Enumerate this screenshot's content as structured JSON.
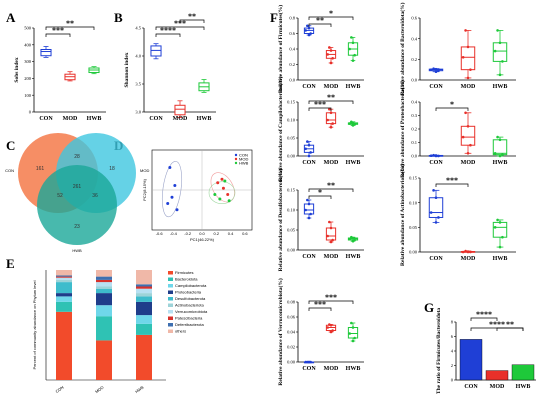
{
  "panel_letters": {
    "A": "A",
    "B": "B",
    "C": "C",
    "D": "D",
    "E": "E",
    "F": "F",
    "G": "G"
  },
  "groups": [
    "CON",
    "MOD",
    "HWB"
  ],
  "colors": {
    "CON": "#1f3fd6",
    "MOD": "#e8302a",
    "HWB": "#1ec93a"
  },
  "chart_data": [
    {
      "id": "A",
      "type": "box",
      "title": "",
      "ylabel": "Sobs index",
      "ylim": [
        0,
        500
      ],
      "yticks": [
        0,
        100,
        200,
        300,
        400,
        500
      ],
      "categories": [
        "CON",
        "MOD",
        "HWB"
      ],
      "boxes": [
        {
          "group": "CON",
          "min": 325,
          "q1": 335,
          "median": 360,
          "q3": 372,
          "max": 390
        },
        {
          "group": "MOD",
          "min": 185,
          "q1": 192,
          "median": 210,
          "q3": 225,
          "max": 240
        },
        {
          "group": "HWB",
          "min": 228,
          "q1": 235,
          "median": 250,
          "q3": 262,
          "max": 270
        }
      ],
      "significance": [
        {
          "from": "CON",
          "to": "MOD",
          "label": "***"
        },
        {
          "from": "CON",
          "to": "HWB",
          "label": "**"
        }
      ]
    },
    {
      "id": "B",
      "type": "box",
      "title": "",
      "ylabel": "Shannon index",
      "ylim": [
        3.0,
        4.5
      ],
      "yticks": [
        "3.0",
        "3.5",
        "4.0",
        "4.5"
      ],
      "categories": [
        "CON",
        "MOD",
        "HWB"
      ],
      "boxes": [
        {
          "group": "CON",
          "min": 3.95,
          "q1": 4.0,
          "median": 4.1,
          "q3": 4.18,
          "max": 4.22
        },
        {
          "group": "MOD",
          "min": 2.9,
          "q1": 2.95,
          "median": 3.05,
          "q3": 3.12,
          "max": 3.2
        },
        {
          "group": "HWB",
          "min": 3.35,
          "q1": 3.38,
          "median": 3.45,
          "q3": 3.52,
          "max": 3.58
        }
      ],
      "significance": [
        {
          "from": "CON",
          "to": "MOD",
          "label": "****"
        },
        {
          "from": "CON",
          "to": "HWB",
          "label": "***"
        },
        {
          "from": "MOD",
          "to": "HWB",
          "label": "**"
        }
      ]
    },
    {
      "id": "C",
      "type": "venn",
      "sets": [
        "CON",
        "MOD",
        "HWB"
      ],
      "values": {
        "CON_only": 161,
        "MOD_only": 18,
        "HWB_only": 23,
        "CON_MOD": 28,
        "CON_HWB": 52,
        "MOD_HWB": 36,
        "all": 261
      }
    },
    {
      "id": "D",
      "type": "scatter",
      "xlabel": "PC1(46.22%)",
      "ylabel": "PC2(8.15%)",
      "xticks": [
        "-0.6",
        "-0.4",
        "-0.2",
        "0.0",
        "0.2",
        "0.4",
        "0.6"
      ],
      "legend": [
        "CON",
        "MOD",
        "HWB"
      ],
      "points": [
        {
          "group": "CON",
          "x": -0.45,
          "y": 0.25
        },
        {
          "group": "CON",
          "x": -0.38,
          "y": 0.05
        },
        {
          "group": "CON",
          "x": -0.42,
          "y": -0.08
        },
        {
          "group": "CON",
          "x": -0.35,
          "y": -0.22
        },
        {
          "group": "CON",
          "x": -0.48,
          "y": -0.15
        },
        {
          "group": "MOD",
          "x": 0.22,
          "y": 0.08
        },
        {
          "group": "MOD",
          "x": 0.3,
          "y": 0.02
        },
        {
          "group": "MOD",
          "x": 0.36,
          "y": -0.05
        },
        {
          "group": "MOD",
          "x": 0.28,
          "y": 0.12
        },
        {
          "group": "HWB",
          "x": 0.18,
          "y": -0.05
        },
        {
          "group": "HWB",
          "x": 0.25,
          "y": -0.1
        },
        {
          "group": "HWB",
          "x": 0.38,
          "y": -0.12
        },
        {
          "group": "HWB",
          "x": 0.32,
          "y": 0.1
        }
      ]
    },
    {
      "id": "E",
      "type": "stacked_bar",
      "ylabel": "Percent of community abundance on Phylum level",
      "categories": [
        "CON",
        "MOD",
        "HWB"
      ],
      "series": [
        {
          "name": "Firmicutes",
          "color": "#f24b2b",
          "values": [
            0.62,
            0.36,
            0.41
          ]
        },
        {
          "name": "Bacteroidota",
          "color": "#2fc2b4",
          "values": [
            0.09,
            0.22,
            0.1
          ]
        },
        {
          "name": "Campilobacterota",
          "color": "#6fd7ea",
          "values": [
            0.05,
            0.1,
            0.08
          ]
        },
        {
          "name": "Proteobacteria",
          "color": "#1f3d8a",
          "values": [
            0.03,
            0.11,
            0.12
          ]
        },
        {
          "name": "Desulfobacterota",
          "color": "#3ebccc",
          "values": [
            0.1,
            0.04,
            0.05
          ]
        },
        {
          "name": "Actinobacteriota",
          "color": "#9dd3d8",
          "values": [
            0.02,
            0.02,
            0.03
          ]
        },
        {
          "name": "Verrucomicrobiota",
          "color": "#b7e0f2",
          "values": [
            0.02,
            0.04,
            0.04
          ]
        },
        {
          "name": "Patescibacteria",
          "color": "#d7312b",
          "values": [
            0.01,
            0.02,
            0.02
          ]
        },
        {
          "name": "Deferribacterota",
          "color": "#3e6fb0",
          "values": [
            0.01,
            0.03,
            0.02
          ]
        },
        {
          "name": "others",
          "color": "#f0b8a8",
          "values": [
            0.05,
            0.06,
            0.13
          ]
        }
      ]
    },
    {
      "id": "F1",
      "type": "box",
      "ylabel": "Relative abundance of Firmicutes(%)",
      "ylim": [
        0,
        0.8
      ],
      "yticks": [
        "0.0",
        "0.2",
        "0.4",
        "0.6",
        "0.8"
      ],
      "boxes": [
        {
          "group": "CON",
          "min": 0.58,
          "q1": 0.6,
          "median": 0.64,
          "q3": 0.67,
          "max": 0.7
        },
        {
          "group": "MOD",
          "min": 0.22,
          "q1": 0.28,
          "median": 0.33,
          "q3": 0.38,
          "max": 0.42
        },
        {
          "group": "HWB",
          "min": 0.25,
          "q1": 0.32,
          "median": 0.4,
          "q3": 0.48,
          "max": 0.55
        }
      ],
      "significance": [
        {
          "from": "CON",
          "to": "MOD",
          "label": "**"
        },
        {
          "from": "CON",
          "to": "HWB",
          "label": "*"
        }
      ]
    },
    {
      "id": "F2",
      "type": "box",
      "ylabel": "Relative abundance of Bacteroidota(%)",
      "ylim": [
        0,
        0.6
      ],
      "yticks": [
        "0.0",
        "0.2",
        "0.4",
        "0.6"
      ],
      "boxes": [
        {
          "group": "CON",
          "min": 0.08,
          "q1": 0.09,
          "median": 0.1,
          "q3": 0.105,
          "max": 0.11
        },
        {
          "group": "MOD",
          "min": 0.02,
          "q1": 0.1,
          "median": 0.22,
          "q3": 0.32,
          "max": 0.48
        },
        {
          "group": "HWB",
          "min": 0.05,
          "q1": 0.18,
          "median": 0.28,
          "q3": 0.36,
          "max": 0.48
        }
      ],
      "significance": []
    },
    {
      "id": "F3",
      "type": "box",
      "ylabel": "Relative abundance of Campilobacterota(%)",
      "ylim": [
        0,
        0.15
      ],
      "yticks": [
        "0.00",
        "0.05",
        "0.10",
        "0.15"
      ],
      "boxes": [
        {
          "group": "CON",
          "min": 0.0,
          "q1": 0.01,
          "median": 0.02,
          "q3": 0.03,
          "max": 0.04
        },
        {
          "group": "MOD",
          "min": 0.08,
          "q1": 0.09,
          "median": 0.1,
          "q3": 0.12,
          "max": 0.13
        },
        {
          "group": "HWB",
          "min": 0.085,
          "q1": 0.088,
          "median": 0.09,
          "q3": 0.092,
          "max": 0.095
        }
      ],
      "significance": [
        {
          "from": "CON",
          "to": "MOD",
          "label": "***"
        },
        {
          "from": "CON",
          "to": "HWB",
          "label": "**"
        }
      ]
    },
    {
      "id": "F4",
      "type": "box",
      "ylabel": "Relative abundance of Proteobacteria(%)",
      "ylim": [
        0,
        0.4
      ],
      "yticks": [
        "0.0",
        "0.1",
        "0.2",
        "0.3",
        "0.4"
      ],
      "boxes": [
        {
          "group": "CON",
          "min": 0.0,
          "q1": 0.0,
          "median": 0.002,
          "q3": 0.004,
          "max": 0.006
        },
        {
          "group": "MOD",
          "min": 0.02,
          "q1": 0.08,
          "median": 0.14,
          "q3": 0.22,
          "max": 0.32
        },
        {
          "group": "HWB",
          "min": 0.0,
          "q1": 0.01,
          "median": 0.02,
          "q3": 0.12,
          "max": 0.14
        }
      ],
      "significance": [
        {
          "from": "CON",
          "to": "MOD",
          "label": "*"
        }
      ]
    },
    {
      "id": "F5",
      "type": "box",
      "ylabel": "Relative abundance of Desulfobacterota(%)",
      "ylim": [
        0,
        0.15
      ],
      "yticks": [
        "0.00",
        "0.05",
        "0.10",
        "0.15"
      ],
      "boxes": [
        {
          "group": "CON",
          "min": 0.08,
          "q1": 0.09,
          "median": 0.1,
          "q3": 0.115,
          "max": 0.125
        },
        {
          "group": "MOD",
          "min": 0.02,
          "q1": 0.025,
          "median": 0.035,
          "q3": 0.055,
          "max": 0.07
        },
        {
          "group": "HWB",
          "min": 0.022,
          "q1": 0.025,
          "median": 0.028,
          "q3": 0.03,
          "max": 0.032
        }
      ],
      "significance": [
        {
          "from": "CON",
          "to": "MOD",
          "label": "*"
        },
        {
          "from": "CON",
          "to": "HWB",
          "label": "**"
        }
      ]
    },
    {
      "id": "F6",
      "type": "box",
      "ylabel": "Relative abundance of Actinobacteriota(%)",
      "ylim": [
        0,
        0.15
      ],
      "yticks": [
        "0.00",
        "0.05",
        "0.10",
        "0.15"
      ],
      "boxes": [
        {
          "group": "CON",
          "min": 0.06,
          "q1": 0.07,
          "median": 0.08,
          "q3": 0.11,
          "max": 0.125
        },
        {
          "group": "MOD",
          "min": 0.0,
          "q1": 0.0,
          "median": 0.0,
          "q3": 0.001,
          "max": 0.002
        },
        {
          "group": "HWB",
          "min": 0.01,
          "q1": 0.03,
          "median": 0.05,
          "q3": 0.06,
          "max": 0.065
        }
      ],
      "significance": [
        {
          "from": "CON",
          "to": "MOD",
          "label": "***"
        }
      ]
    },
    {
      "id": "F7",
      "type": "box",
      "ylabel": "Relative abundance of Verrucomicrobiota(%)",
      "ylim": [
        0,
        0.08
      ],
      "yticks": [
        "0.00",
        "0.02",
        "0.04",
        "0.06",
        "0.08"
      ],
      "boxes": [
        {
          "group": "CON",
          "min": 0.0,
          "q1": 0.0,
          "median": 0.0,
          "q3": 0.0,
          "max": 0.0
        },
        {
          "group": "MOD",
          "min": 0.04,
          "q1": 0.042,
          "median": 0.046,
          "q3": 0.049,
          "max": 0.05
        },
        {
          "group": "HWB",
          "min": 0.028,
          "q1": 0.032,
          "median": 0.038,
          "q3": 0.046,
          "max": 0.052
        }
      ],
      "significance": [
        {
          "from": "CON",
          "to": "MOD",
          "label": "***"
        },
        {
          "from": "CON",
          "to": "HWB",
          "label": "***"
        }
      ]
    },
    {
      "id": "G",
      "type": "bar",
      "ylabel": "The ratio of Firmicutes/Bacteroidota",
      "ylim": [
        0,
        8
      ],
      "yticks": [
        "0",
        "2",
        "4",
        "6",
        "8"
      ],
      "categories": [
        "CON",
        "MOD",
        "HWB"
      ],
      "values": [
        5.6,
        1.3,
        2.1
      ],
      "significance": [
        {
          "from": "CON",
          "to": "MOD",
          "label": "****"
        },
        {
          "from": "CON",
          "to": "HWB",
          "label": "****"
        },
        {
          "from": "MOD",
          "to": "HWB",
          "label": "**"
        }
      ]
    }
  ]
}
